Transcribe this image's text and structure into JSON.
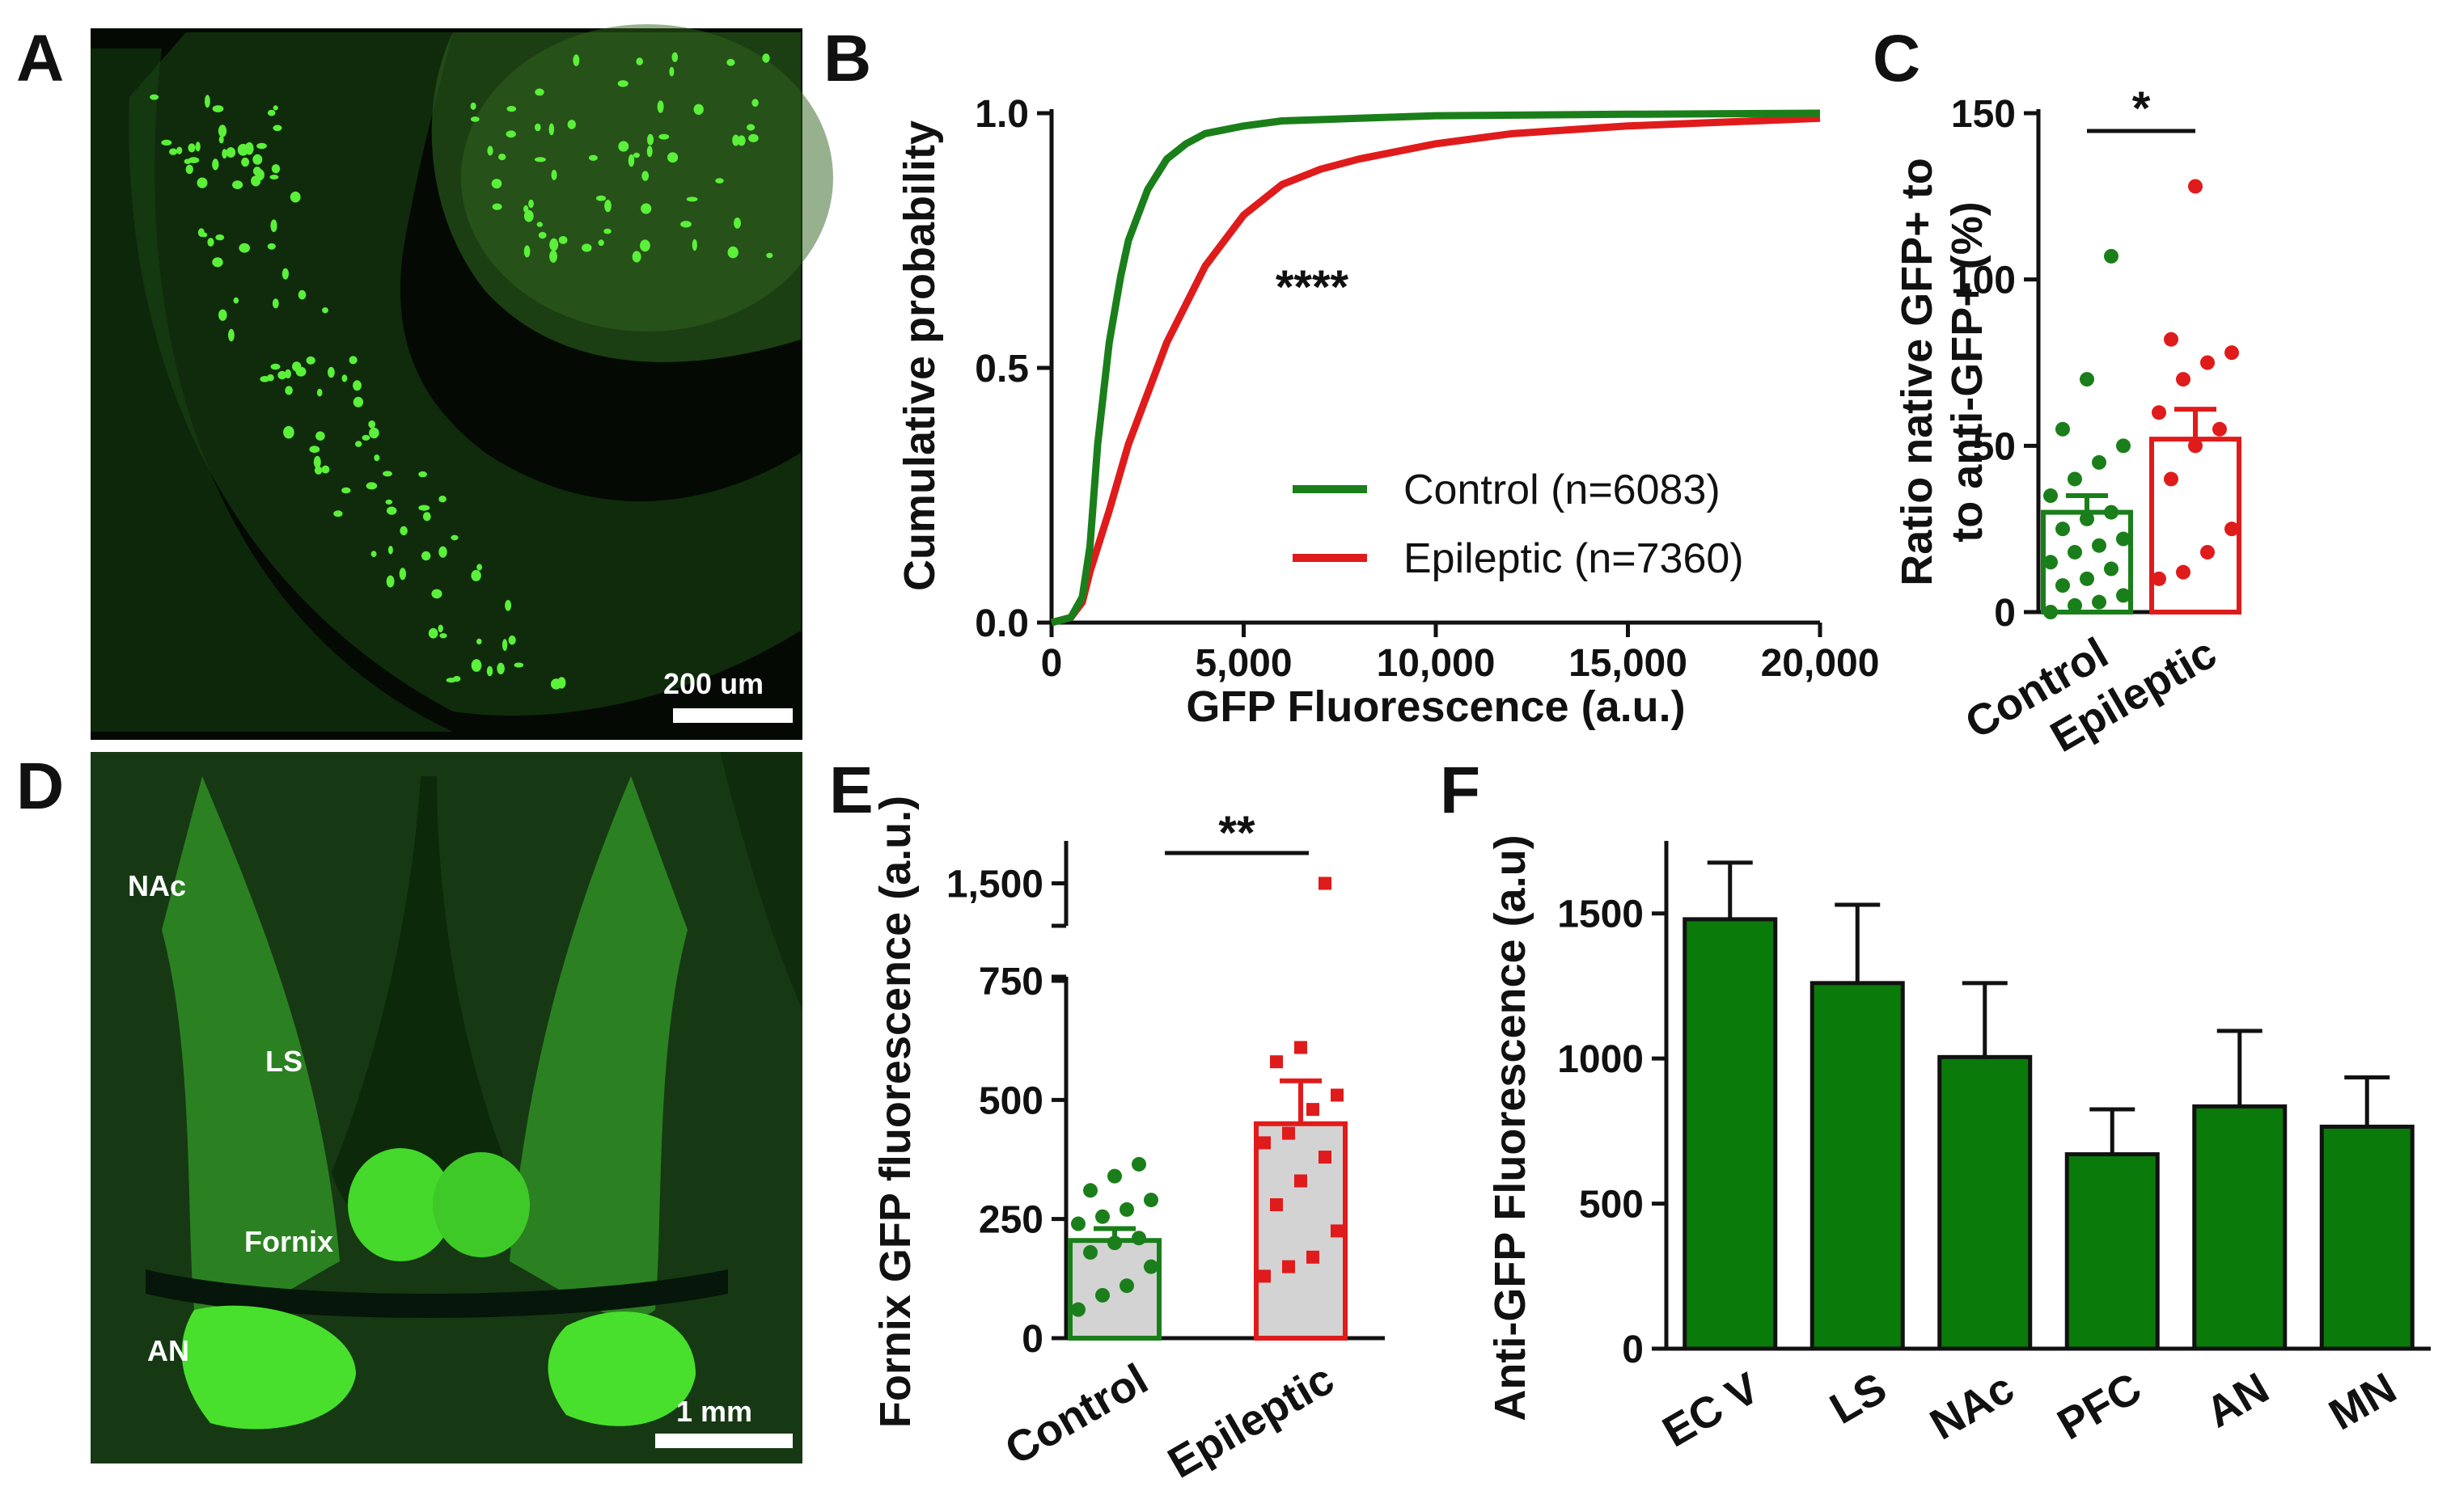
{
  "panel_labels": [
    "A",
    "B",
    "C",
    "D",
    "E",
    "F"
  ],
  "panel_a": {
    "scale_bar": "200 um"
  },
  "panel_d": {
    "scale_bar": "1 mm",
    "regions": {
      "nac": "NAc",
      "ls": "LS",
      "fornix": "Fornix",
      "an": "AN"
    }
  },
  "colors": {
    "control": "#1a7f1a",
    "epileptic": "#e01b1b",
    "bar_green": "#0a7a0a",
    "micro_green": "#3cd21e"
  },
  "chart_data": [
    {
      "id": "B",
      "type": "line",
      "xlabel": "GFP Fluorescence (a.u.)",
      "ylabel": "Cumulative probability",
      "xlim": [
        0,
        20000
      ],
      "ylim": [
        0,
        1.0
      ],
      "x_ticks": [
        0,
        5000,
        10000,
        15000,
        20000
      ],
      "x_tick_labels": [
        "0",
        "5,000",
        "10,000",
        "15,000",
        "20,000"
      ],
      "y_ticks": [
        0,
        0.5,
        1.0
      ],
      "y_tick_labels": [
        "0.0",
        "0.5",
        "1.0"
      ],
      "annotation": "****",
      "legend_position": "bottom-right",
      "series": [
        {
          "name": "Control (n=6083)",
          "color": "#1a7f1a",
          "x": [
            0,
            500,
            800,
            1000,
            1200,
            1500,
            1800,
            2000,
            2500,
            3000,
            3500,
            4000,
            5000,
            6000,
            8000,
            10000,
            15000,
            20000
          ],
          "y": [
            0,
            0.01,
            0.05,
            0.15,
            0.35,
            0.55,
            0.68,
            0.75,
            0.85,
            0.91,
            0.94,
            0.96,
            0.975,
            0.985,
            0.99,
            0.995,
            0.998,
            1.0
          ]
        },
        {
          "name": "Epileptic (n=7360)",
          "color": "#e01b1b",
          "x": [
            0,
            500,
            800,
            1000,
            1500,
            2000,
            2500,
            3000,
            4000,
            5000,
            6000,
            7000,
            8000,
            10000,
            12000,
            15000,
            20000
          ],
          "y": [
            0,
            0.01,
            0.04,
            0.1,
            0.22,
            0.35,
            0.45,
            0.55,
            0.7,
            0.8,
            0.86,
            0.89,
            0.91,
            0.94,
            0.96,
            0.975,
            0.99
          ]
        }
      ]
    },
    {
      "id": "C",
      "type": "bar",
      "ylabel": "Ratio native GFP+ to to anti-GFP+ (%)",
      "ylabel_lines": [
        "Ratio native GFP+ to",
        "to anti-GFP+ (%)"
      ],
      "ylim": [
        0,
        150
      ],
      "y_ticks": [
        0,
        50,
        100,
        150
      ],
      "categories": [
        "Control",
        "Epileptic"
      ],
      "values": [
        30,
        52
      ],
      "sem": [
        5,
        9
      ],
      "significance": "*",
      "points": [
        [
          0,
          2,
          3,
          5,
          8,
          10,
          13,
          15,
          18,
          20,
          22,
          25,
          28,
          30,
          35,
          40,
          45,
          50,
          55,
          70,
          107
        ],
        [
          10,
          12,
          18,
          25,
          40,
          50,
          55,
          60,
          70,
          75,
          78,
          82,
          128
        ]
      ]
    },
    {
      "id": "E",
      "type": "bar",
      "ylabel": "Fornix GFP fluorescence (a.u.)",
      "ylim": [
        0,
        1650
      ],
      "axis_break": [
        750,
        1350
      ],
      "y_ticks": [
        0,
        250,
        500,
        750,
        1500
      ],
      "categories": [
        "Control",
        "Epileptic"
      ],
      "values": [
        205,
        450
      ],
      "sem": [
        25,
        90
      ],
      "significance": "**",
      "points": [
        [
          60,
          90,
          110,
          150,
          180,
          200,
          210,
          240,
          255,
          270,
          290,
          310,
          340,
          365
        ],
        [
          130,
          150,
          170,
          225,
          280,
          330,
          380,
          410,
          430,
          480,
          510,
          580,
          610,
          1500
        ]
      ]
    },
    {
      "id": "F",
      "type": "bar",
      "ylabel": "Anti-GFP Fluorescence (a.u)",
      "ylim": [
        0,
        1750
      ],
      "y_ticks": [
        0,
        500,
        1000,
        1500
      ],
      "categories": [
        "EC V",
        "LS",
        "NAc",
        "PFC",
        "AN",
        "MN"
      ],
      "values": [
        1480,
        1260,
        1005,
        670,
        835,
        765
      ],
      "sem": [
        195,
        270,
        255,
        155,
        260,
        170
      ]
    }
  ]
}
